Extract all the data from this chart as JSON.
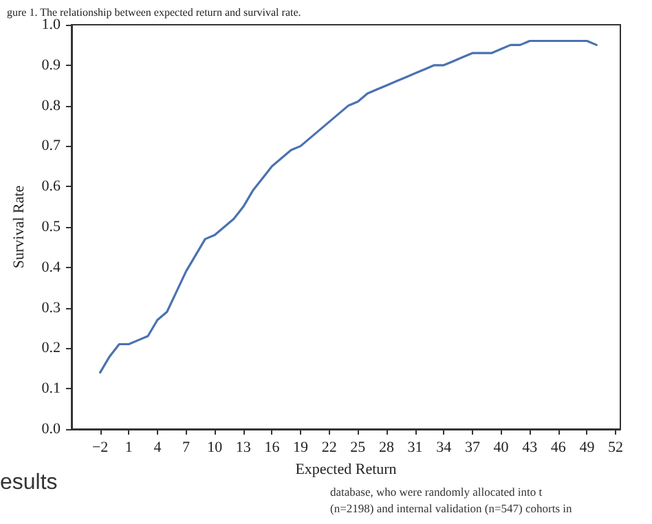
{
  "chart_data": {
    "type": "line",
    "title": "gure 1. The relationship between expected return and survival rate.",
    "xlabel": "Expected Return",
    "ylabel": "Survival Rate",
    "x": [
      -2,
      -1,
      0,
      1,
      2,
      3,
      4,
      5,
      6,
      7,
      8,
      9,
      10,
      11,
      12,
      13,
      14,
      15,
      16,
      17,
      18,
      19,
      20,
      21,
      22,
      23,
      24,
      25,
      26,
      27,
      28,
      29,
      30,
      31,
      32,
      33,
      34,
      35,
      36,
      37,
      38,
      39,
      40,
      41,
      42,
      43,
      44,
      45,
      46,
      47,
      48,
      49,
      50
    ],
    "series": [
      {
        "color": "#4a72b0",
        "values": [
          0.14,
          0.18,
          0.21,
          0.21,
          0.22,
          0.23,
          0.27,
          0.29,
          0.34,
          0.39,
          0.43,
          0.47,
          0.48,
          0.5,
          0.52,
          0.55,
          0.59,
          0.62,
          0.65,
          0.67,
          0.69,
          0.7,
          0.72,
          0.74,
          0.76,
          0.78,
          0.8,
          0.81,
          0.83,
          0.84,
          0.85,
          0.86,
          0.87,
          0.88,
          0.89,
          0.9,
          0.9,
          0.91,
          0.92,
          0.93,
          0.93,
          0.93,
          0.94,
          0.95,
          0.95,
          0.96,
          0.96,
          0.96,
          0.96,
          0.96,
          0.96,
          0.96,
          0.95
        ]
      }
    ],
    "xlim": [
      -5,
      52.5
    ],
    "xticks": [
      {
        "value": -2,
        "label": "−2"
      },
      1,
      4,
      7,
      10,
      13,
      16,
      19,
      22,
      25,
      28,
      31,
      34,
      37,
      40,
      43,
      46,
      49,
      52
    ],
    "ylim": [
      0,
      1
    ],
    "yticks": [
      {
        "value": 0,
        "label": "0.0"
      },
      0.1,
      0.2,
      0.3,
      0.4,
      0.5,
      0.6,
      0.7,
      0.8,
      0.9,
      {
        "value": 1,
        "label": "1.0"
      }
    ],
    "grid": false,
    "marker": "none",
    "line_style": "solid",
    "annotations": [
      "esults",
      "database, who were randomly allocated into t",
      "(n=2198) and internal validation (n=547) cohorts in"
    ]
  }
}
